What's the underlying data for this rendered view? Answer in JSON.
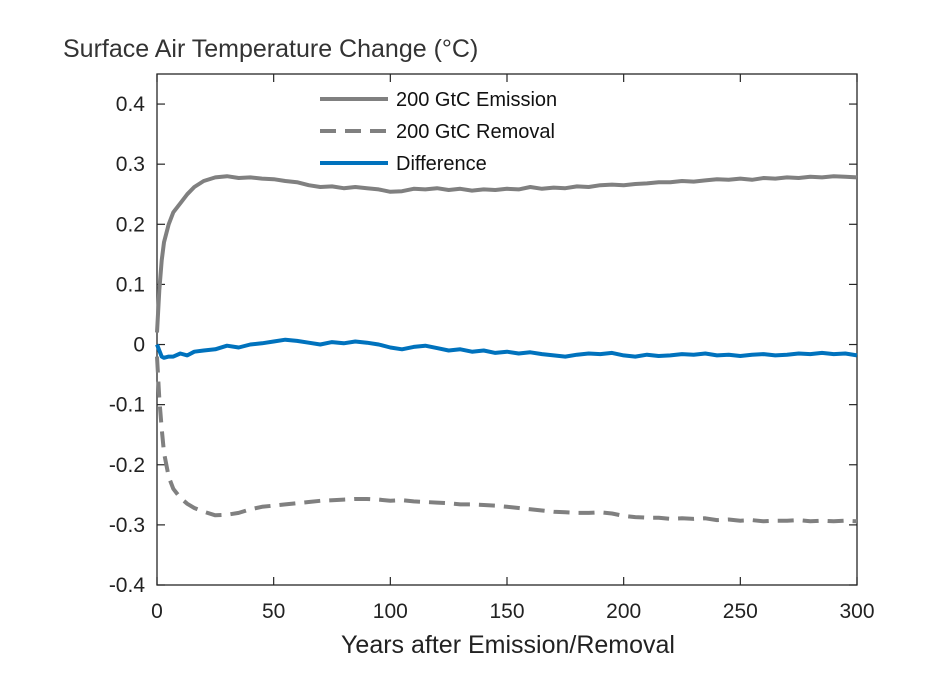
{
  "chart_data": {
    "type": "line",
    "title": "Surface Air Temperature Change (°C)",
    "xlabel": "Years after Emission/Removal",
    "ylabel": "",
    "xlim": [
      0,
      300
    ],
    "ylim": [
      -0.4,
      0.45
    ],
    "x_ticks": [
      0,
      50,
      100,
      150,
      200,
      250,
      300
    ],
    "y_ticks": [
      -0.4,
      -0.3,
      -0.2,
      -0.1,
      0,
      0.1,
      0.2,
      0.3,
      0.4
    ],
    "x_tick_labels": [
      "0",
      "50",
      "100",
      "150",
      "200",
      "250",
      "300"
    ],
    "y_tick_labels": [
      "-0.4",
      "-0.3",
      "-0.2",
      "-0.1",
      "0",
      "0.1",
      "0.2",
      "0.3",
      "0.4"
    ],
    "grid": false,
    "legend_position": "top-center",
    "series": [
      {
        "name": "200 GtC Emission",
        "color": "#808080",
        "dash": "solid",
        "x": [
          0,
          1,
          2,
          3,
          5,
          7,
          10,
          13,
          16,
          20,
          25,
          30,
          35,
          40,
          45,
          50,
          55,
          60,
          65,
          70,
          75,
          80,
          85,
          90,
          95,
          100,
          105,
          110,
          115,
          120,
          125,
          130,
          135,
          140,
          145,
          150,
          155,
          160,
          165,
          170,
          175,
          180,
          185,
          190,
          195,
          200,
          205,
          210,
          215,
          220,
          225,
          230,
          235,
          240,
          245,
          250,
          255,
          260,
          265,
          270,
          275,
          280,
          285,
          290,
          295,
          300
        ],
        "values": [
          0.02,
          0.09,
          0.14,
          0.17,
          0.2,
          0.22,
          0.235,
          0.25,
          0.262,
          0.272,
          0.278,
          0.28,
          0.277,
          0.278,
          0.276,
          0.275,
          0.272,
          0.27,
          0.265,
          0.262,
          0.263,
          0.26,
          0.262,
          0.26,
          0.258,
          0.254,
          0.255,
          0.259,
          0.258,
          0.26,
          0.257,
          0.259,
          0.256,
          0.258,
          0.257,
          0.259,
          0.258,
          0.262,
          0.259,
          0.261,
          0.26,
          0.263,
          0.262,
          0.265,
          0.266,
          0.265,
          0.267,
          0.268,
          0.27,
          0.27,
          0.272,
          0.271,
          0.273,
          0.275,
          0.274,
          0.276,
          0.274,
          0.277,
          0.276,
          0.278,
          0.277,
          0.279,
          0.278,
          0.28,
          0.279,
          0.278
        ]
      },
      {
        "name": "200 GtC Removal",
        "color": "#808080",
        "dash": "dashed",
        "x": [
          0,
          1,
          2,
          3,
          5,
          7,
          10,
          13,
          16,
          20,
          25,
          30,
          35,
          40,
          45,
          50,
          55,
          60,
          65,
          70,
          75,
          80,
          85,
          90,
          95,
          100,
          105,
          110,
          115,
          120,
          125,
          130,
          135,
          140,
          145,
          150,
          155,
          160,
          165,
          170,
          175,
          180,
          185,
          190,
          195,
          200,
          205,
          210,
          215,
          220,
          225,
          230,
          235,
          240,
          245,
          250,
          255,
          260,
          265,
          270,
          275,
          280,
          285,
          290,
          295,
          300
        ],
        "values": [
          -0.02,
          -0.09,
          -0.14,
          -0.18,
          -0.22,
          -0.24,
          -0.255,
          -0.265,
          -0.272,
          -0.278,
          -0.284,
          -0.283,
          -0.28,
          -0.274,
          -0.27,
          -0.268,
          -0.266,
          -0.264,
          -0.262,
          -0.26,
          -0.259,
          -0.258,
          -0.257,
          -0.257,
          -0.258,
          -0.26,
          -0.259,
          -0.261,
          -0.262,
          -0.263,
          -0.264,
          -0.266,
          -0.266,
          -0.267,
          -0.268,
          -0.27,
          -0.272,
          -0.274,
          -0.276,
          -0.278,
          -0.279,
          -0.28,
          -0.28,
          -0.279,
          -0.281,
          -0.285,
          -0.287,
          -0.288,
          -0.288,
          -0.29,
          -0.289,
          -0.29,
          -0.289,
          -0.292,
          -0.291,
          -0.293,
          -0.292,
          -0.294,
          -0.293,
          -0.293,
          -0.292,
          -0.294,
          -0.293,
          -0.294,
          -0.293,
          -0.294
        ]
      },
      {
        "name": "Difference",
        "color": "#0072BD",
        "dash": "solid",
        "x": [
          0,
          1,
          2,
          3,
          5,
          7,
          10,
          13,
          16,
          20,
          25,
          30,
          35,
          40,
          45,
          50,
          55,
          60,
          65,
          70,
          75,
          80,
          85,
          90,
          95,
          100,
          105,
          110,
          115,
          120,
          125,
          130,
          135,
          140,
          145,
          150,
          155,
          160,
          165,
          170,
          175,
          180,
          185,
          190,
          195,
          200,
          205,
          210,
          215,
          220,
          225,
          230,
          235,
          240,
          245,
          250,
          255,
          260,
          265,
          270,
          275,
          280,
          285,
          290,
          295,
          300
        ],
        "values": [
          0.0,
          -0.01,
          -0.02,
          -0.022,
          -0.02,
          -0.02,
          -0.015,
          -0.018,
          -0.012,
          -0.01,
          -0.008,
          -0.002,
          -0.005,
          0.0,
          0.002,
          0.005,
          0.008,
          0.006,
          0.003,
          0.0,
          0.004,
          0.002,
          0.005,
          0.003,
          0.0,
          -0.005,
          -0.008,
          -0.004,
          -0.002,
          -0.006,
          -0.01,
          -0.008,
          -0.012,
          -0.01,
          -0.014,
          -0.012,
          -0.015,
          -0.013,
          -0.016,
          -0.018,
          -0.02,
          -0.017,
          -0.015,
          -0.016,
          -0.014,
          -0.018,
          -0.02,
          -0.017,
          -0.019,
          -0.018,
          -0.016,
          -0.017,
          -0.015,
          -0.018,
          -0.017,
          -0.019,
          -0.017,
          -0.016,
          -0.018,
          -0.017,
          -0.015,
          -0.016,
          -0.014,
          -0.016,
          -0.015,
          -0.018
        ]
      }
    ]
  }
}
